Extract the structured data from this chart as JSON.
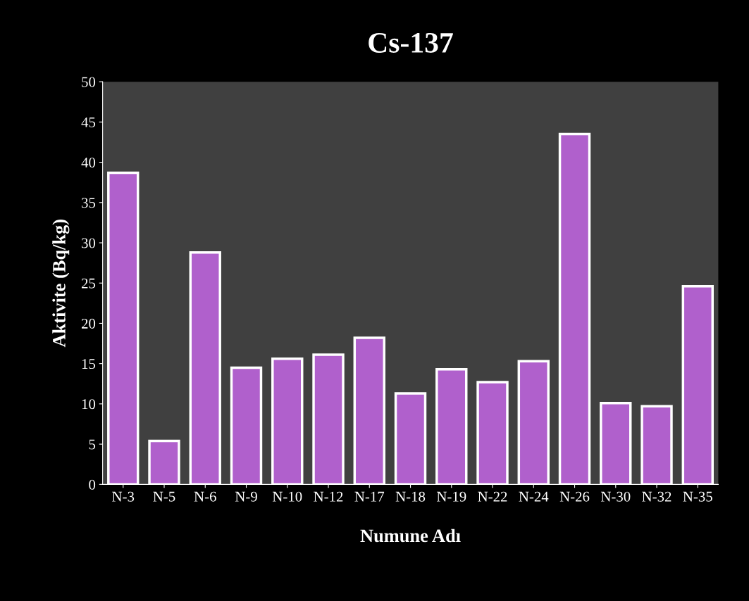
{
  "chart_data": {
    "type": "bar",
    "title": "Cs-137",
    "xlabel": "Numune Adı",
    "ylabel": "Aktivite (Bq/kg)",
    "categories": [
      "N-3",
      "N-5",
      "N-6",
      "N-9",
      "N-10",
      "N-12",
      "N-17",
      "N-18",
      "N-19",
      "N-22",
      "N-24",
      "N-26",
      "N-30",
      "N-32",
      "N-35"
    ],
    "values": [
      38.7,
      5.4,
      28.8,
      14.5,
      15.6,
      16.1,
      18.2,
      11.3,
      14.3,
      12.7,
      15.3,
      43.5,
      10.1,
      9.7,
      24.6
    ],
    "color": "#b060cc",
    "ylim": [
      0,
      50
    ],
    "yticks": [
      0,
      5,
      10,
      15,
      20,
      25,
      30,
      35,
      40,
      45,
      50
    ],
    "grid": false,
    "legend": false
  }
}
